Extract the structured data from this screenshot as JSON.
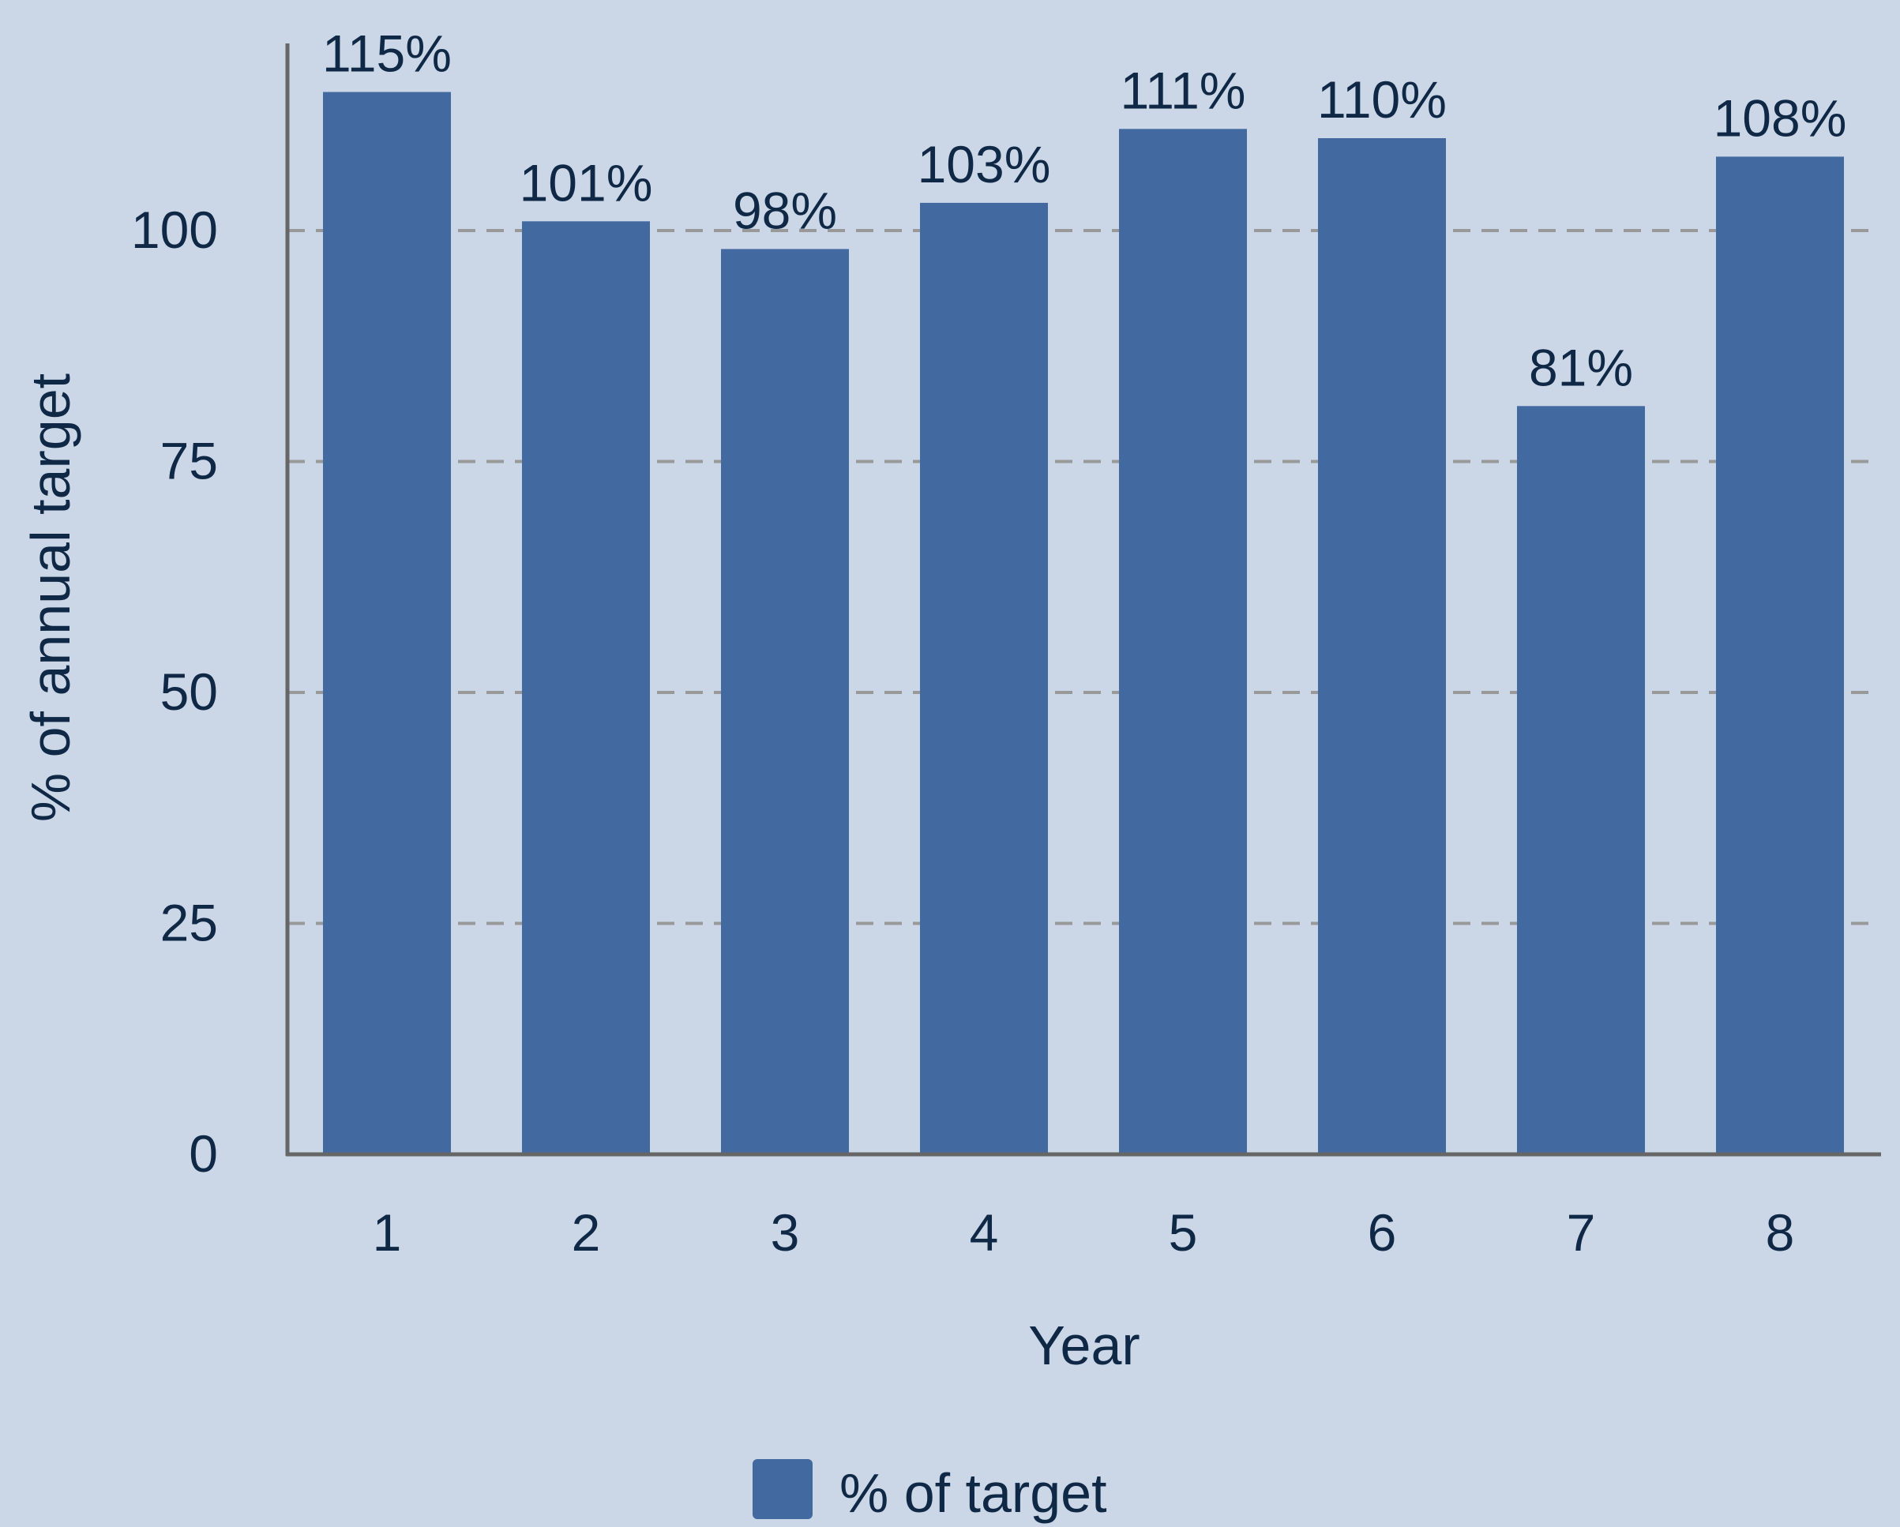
{
  "chart_data": {
    "type": "bar",
    "categories": [
      "1",
      "2",
      "3",
      "4",
      "5",
      "6",
      "7",
      "8"
    ],
    "series": [
      {
        "name": "% of target",
        "values": [
          115,
          101,
          98,
          103,
          111,
          110,
          81,
          108
        ],
        "labels": [
          "115%",
          "101%",
          "98%",
          "103%",
          "111%",
          "110%",
          "81%",
          "108%"
        ]
      }
    ],
    "xlabel": "Year",
    "ylabel": "% of annual target",
    "ylim": [
      0,
      120
    ],
    "yticks": [
      "0",
      "25",
      "50",
      "75",
      "100"
    ],
    "ytick_values": [
      0,
      25,
      50,
      75,
      100
    ],
    "grid": true,
    "legend_position": "bottom-center",
    "colors": {
      "bar": "#4369a1",
      "background": "#cbd7e6",
      "axis": "#666666",
      "grid": "#999999",
      "text": "#0f2846"
    }
  }
}
